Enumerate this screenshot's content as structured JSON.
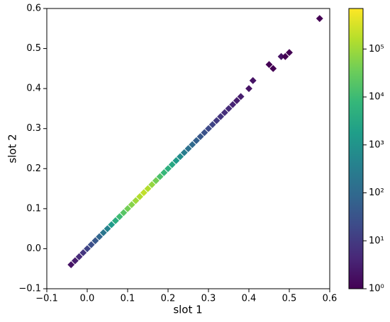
{
  "chart_data": {
    "type": "hist2d",
    "x_label": "slot 1",
    "y_label": "slot 2",
    "x": [
      -0.04,
      -0.03,
      -0.02,
      -0.01,
      0.0,
      0.01,
      0.02,
      0.03,
      0.04,
      0.05,
      0.06,
      0.07,
      0.08,
      0.09,
      0.1,
      0.11,
      0.12,
      0.13,
      0.14,
      0.15,
      0.16,
      0.17,
      0.18,
      0.19,
      0.2,
      0.21,
      0.22,
      0.23,
      0.24,
      0.25,
      0.26,
      0.27,
      0.28,
      0.29,
      0.3,
      0.31,
      0.32,
      0.33,
      0.34,
      0.35,
      0.36,
      0.37,
      0.38,
      0.4,
      0.41,
      0.45,
      0.46,
      0.48,
      0.49,
      0.5,
      0.575
    ],
    "y": [
      -0.04,
      -0.03,
      -0.02,
      -0.01,
      0.0,
      0.01,
      0.02,
      0.03,
      0.04,
      0.05,
      0.06,
      0.07,
      0.08,
      0.09,
      0.1,
      0.11,
      0.12,
      0.13,
      0.14,
      0.15,
      0.16,
      0.17,
      0.18,
      0.19,
      0.2,
      0.21,
      0.22,
      0.23,
      0.24,
      0.25,
      0.26,
      0.27,
      0.28,
      0.29,
      0.3,
      0.31,
      0.32,
      0.33,
      0.34,
      0.35,
      0.36,
      0.37,
      0.38,
      0.4,
      0.42,
      0.46,
      0.45,
      0.48,
      0.48,
      0.49,
      0.575
    ],
    "values": [
      2,
      3,
      5,
      8,
      15,
      25,
      40,
      80,
      200,
      400,
      1500,
      4000,
      10000,
      20000,
      40000,
      60000,
      100000,
      150000,
      200000,
      150000,
      80000,
      40000,
      15000,
      8000,
      5000,
      3000,
      1500,
      700,
      300,
      150,
      100,
      60,
      40,
      30,
      20,
      15,
      10,
      8,
      6,
      5,
      4,
      3,
      3,
      2,
      2,
      1,
      1,
      2,
      1,
      1,
      1
    ],
    "colormap": "viridis",
    "log_color": true,
    "xlim": [
      -0.1,
      0.6
    ],
    "ylim": [
      -0.1,
      0.6
    ],
    "xticks": [
      {
        "value": -0.1,
        "label": "−0.1"
      },
      {
        "value": 0,
        "label": "0.0"
      },
      0.1,
      0.2,
      0.3,
      0.4,
      0.5,
      0.6
    ],
    "yticks": [
      {
        "value": -0.1,
        "label": "−0.1"
      },
      {
        "value": 0,
        "label": "0.0"
      },
      0.1,
      0.2,
      0.3,
      0.4,
      0.5,
      0.6
    ],
    "clim": [
      1,
      700000
    ],
    "cticks": [
      {
        "value": 1,
        "label": "10⁰"
      },
      {
        "value": 10,
        "label": "10¹"
      },
      {
        "value": 100,
        "label": "10²"
      },
      {
        "value": 1000,
        "label": "10³"
      },
      {
        "value": 10000,
        "label": "10⁴"
      },
      {
        "value": 100000,
        "label": "10⁵"
      }
    ]
  }
}
